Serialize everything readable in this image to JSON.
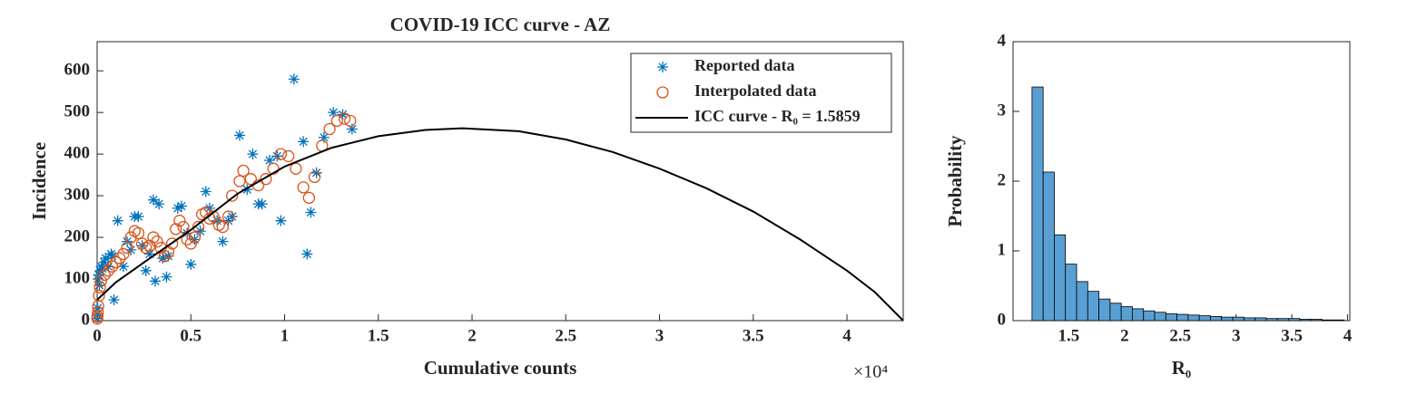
{
  "chart_data": [
    {
      "type": "scatter",
      "title": "COVID-19 ICC curve - AZ",
      "x_label": "Cumulative counts",
      "y_label": "Incidence",
      "x_scale_label": "×10⁴",
      "xlim": [
        0,
        4.3
      ],
      "ylim": [
        0,
        670
      ],
      "xticks": [
        0,
        0.5,
        1,
        1.5,
        2,
        2.5,
        3,
        3.5,
        4
      ],
      "yticks": [
        0,
        100,
        200,
        300,
        400,
        500,
        600
      ],
      "legend": "northeast",
      "series": [
        {
          "name": "Reported data",
          "marker": "asterisk",
          "color": "#0072bd",
          "x": [
            0.001,
            0.002,
            0.003,
            0.005,
            0.008,
            0.012,
            0.017,
            0.022,
            0.028,
            0.038,
            0.045,
            0.06,
            0.075,
            0.08,
            0.09,
            0.11,
            0.14,
            0.16,
            0.18,
            0.2,
            0.22,
            0.24,
            0.26,
            0.28,
            0.3,
            0.31,
            0.33,
            0.35,
            0.37,
            0.38,
            0.43,
            0.45,
            0.48,
            0.5,
            0.52,
            0.55,
            0.58,
            0.6,
            0.64,
            0.67,
            0.7,
            0.72,
            0.76,
            0.8,
            0.83,
            0.86,
            0.88,
            0.92,
            0.96,
            0.98,
            1.05,
            1.1,
            1.12,
            1.14,
            1.17,
            1.21,
            1.26,
            1.31,
            1.36
          ],
          "values": [
            5,
            15,
            30,
            100,
            110,
            85,
            120,
            130,
            125,
            140,
            150,
            130,
            160,
            155,
            50,
            240,
            130,
            190,
            170,
            250,
            250,
            180,
            120,
            160,
            290,
            95,
            280,
            150,
            105,
            155,
            270,
            275,
            210,
            135,
            195,
            215,
            310,
            270,
            240,
            190,
            240,
            250,
            445,
            315,
            400,
            280,
            280,
            385,
            395,
            240,
            580,
            430,
            160,
            260,
            355,
            440,
            500,
            495,
            460
          ]
        },
        {
          "name": "Interpolated data",
          "marker": "circle",
          "color": "#d95319",
          "x": [
            0.001,
            0.002,
            0.004,
            0.006,
            0.01,
            0.015,
            0.02,
            0.04,
            0.06,
            0.08,
            0.1,
            0.12,
            0.14,
            0.16,
            0.18,
            0.2,
            0.22,
            0.24,
            0.26,
            0.28,
            0.3,
            0.32,
            0.34,
            0.36,
            0.38,
            0.4,
            0.42,
            0.44,
            0.46,
            0.48,
            0.5,
            0.52,
            0.54,
            0.56,
            0.58,
            0.6,
            0.62,
            0.65,
            0.67,
            0.7,
            0.72,
            0.76,
            0.78,
            0.82,
            0.86,
            0.9,
            0.94,
            0.98,
            1.02,
            1.06,
            1.1,
            1.13,
            1.16,
            1.2,
            1.24,
            1.28,
            1.32,
            1.35
          ],
          "values": [
            5,
            10,
            20,
            35,
            60,
            80,
            95,
            110,
            120,
            130,
            140,
            150,
            160,
            175,
            200,
            215,
            210,
            185,
            175,
            180,
            200,
            190,
            175,
            155,
            165,
            185,
            220,
            240,
            225,
            195,
            185,
            200,
            225,
            255,
            260,
            245,
            250,
            230,
            225,
            250,
            300,
            335,
            360,
            340,
            325,
            340,
            365,
            400,
            395,
            365,
            320,
            295,
            345,
            420,
            460,
            480,
            485,
            480
          ]
        },
        {
          "name": "ICC curve - R₀ = 1.5859",
          "marker": "line",
          "color": "#000000",
          "x": [
            0,
            0.1,
            0.25,
            0.5,
            0.75,
            1,
            1.25,
            1.5,
            1.75,
            1.95,
            2.25,
            2.5,
            2.75,
            3,
            3.25,
            3.5,
            3.75,
            4,
            4.15,
            4.3
          ],
          "values": [
            50,
            92,
            140,
            218,
            305,
            370,
            415,
            443,
            458,
            462,
            455,
            435,
            405,
            365,
            318,
            262,
            195,
            120,
            68,
            0
          ]
        }
      ]
    },
    {
      "type": "histogram",
      "x_label": "R₀",
      "y_label": "Probability",
      "color": "#5a9fd4",
      "xlim": [
        1,
        4.02
      ],
      "ylim": [
        0,
        4
      ],
      "xticks": [
        1.5,
        2,
        2.5,
        3,
        3.5,
        4
      ],
      "yticks": [
        0,
        1,
        2,
        3,
        4
      ],
      "bins": [
        1.17,
        1.27,
        1.37,
        1.47,
        1.57,
        1.67,
        1.77,
        1.87,
        1.97,
        2.07,
        2.17,
        2.27,
        2.37,
        2.47,
        2.57,
        2.67,
        2.77,
        2.87,
        2.97,
        3.07,
        3.17,
        3.27,
        3.37,
        3.47,
        3.57,
        3.67,
        3.77,
        3.87,
        3.97
      ],
      "values": [
        3.35,
        2.13,
        1.23,
        0.81,
        0.56,
        0.42,
        0.31,
        0.25,
        0.2,
        0.17,
        0.14,
        0.12,
        0.1,
        0.09,
        0.08,
        0.07,
        0.06,
        0.05,
        0.05,
        0.04,
        0.04,
        0.03,
        0.03,
        0.03,
        0.02,
        0.02,
        0.01,
        0.01
      ]
    }
  ]
}
